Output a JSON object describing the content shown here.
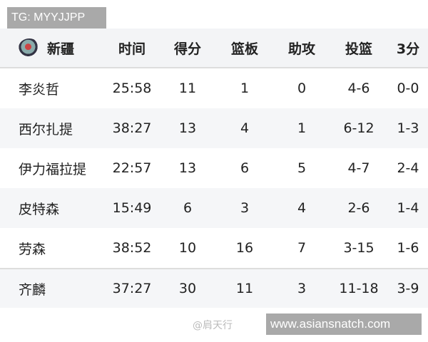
{
  "watermark_top": "TG: MYYJJPP",
  "watermark_bottom": "www.asiansnatch.com",
  "weibo_watermark": "@肩天行",
  "team": {
    "name": "新疆",
    "logo_icon": "team-logo-icon"
  },
  "headers": [
    "时间",
    "得分",
    "篮板",
    "助攻",
    "投篮",
    "3分"
  ],
  "rows": [
    [
      "李炎哲",
      "25:58",
      "11",
      "1",
      "0",
      "4-6",
      "0-0"
    ],
    [
      "西尔扎提",
      "38:27",
      "13",
      "4",
      "1",
      "6-12",
      "1-3"
    ],
    [
      "伊力福拉提",
      "22:57",
      "13",
      "6",
      "5",
      "4-7",
      "2-4"
    ],
    [
      "皮特森",
      "15:49",
      "6",
      "3",
      "4",
      "2-6",
      "1-4"
    ],
    [
      "劳森",
      "38:52",
      "10",
      "16",
      "7",
      "3-15",
      "1-6"
    ],
    [
      "齐麟",
      "37:27",
      "30",
      "11",
      "3",
      "11-18",
      "3-9"
    ]
  ]
}
